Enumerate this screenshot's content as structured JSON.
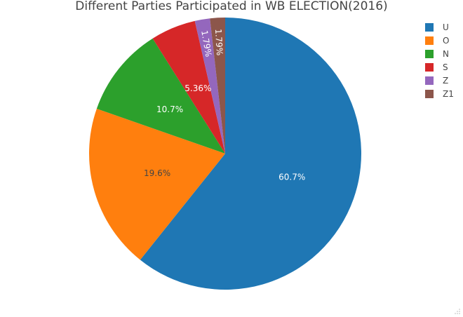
{
  "chart_data": {
    "type": "pie",
    "title": "Different Parties Participated in WB ELECTION(2016)",
    "categories": [
      "U",
      "O",
      "N",
      "S",
      "Z",
      "Z1"
    ],
    "values": [
      60.7,
      19.6,
      10.7,
      5.36,
      1.79,
      1.79
    ],
    "labels": [
      "60.7%",
      "19.6%",
      "10.7%",
      "5.36%",
      "1.79%",
      "1.79%"
    ],
    "colors": [
      "#1f77b4",
      "#ff7f0e",
      "#2ca02c",
      "#d62728",
      "#9467bd",
      "#8c564b"
    ],
    "direction": "clockwise",
    "legend": "top-right"
  }
}
